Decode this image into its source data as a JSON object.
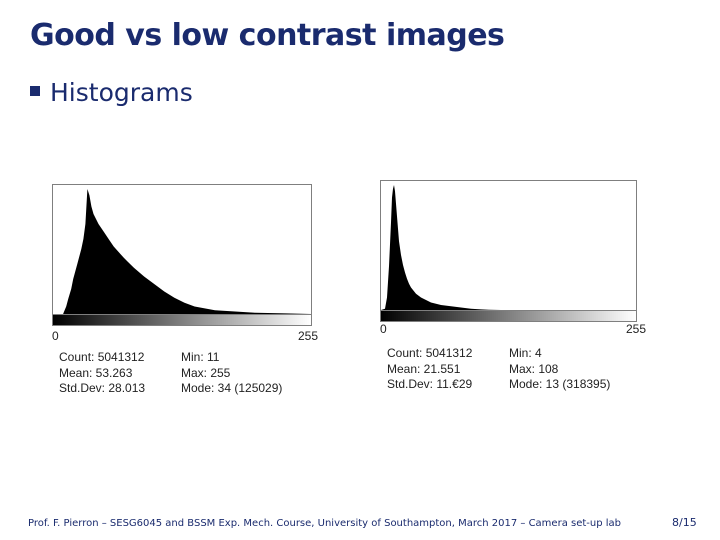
{
  "slide": {
    "title": "Good vs low contrast images",
    "bullet": "Histograms",
    "footer": "Prof. F. Pierron – SESG6045 and BSSM Exp. Mech. Course, University of Southampton, March 2017 – Camera set-up lab",
    "page": "8/15"
  },
  "colors": {
    "title": "#1a2b6e",
    "histogram_fill": "#000000"
  },
  "chart_data": [
    {
      "type": "area",
      "x": [
        0,
        5,
        10,
        11,
        13,
        15,
        18,
        20,
        24,
        28,
        30,
        32,
        34,
        36,
        38,
        40,
        45,
        50,
        55,
        60,
        70,
        80,
        90,
        100,
        110,
        120,
        130,
        140,
        160,
        180,
        200,
        230,
        255
      ],
      "values": [
        0,
        0,
        0,
        2,
        6,
        12,
        20,
        28,
        40,
        52,
        60,
        72,
        100,
        95,
        86,
        80,
        72,
        66,
        60,
        54,
        45,
        37,
        30,
        24,
        18,
        13,
        9,
        6,
        3,
        2,
        1,
        0.5,
        0
      ],
      "xlim": [
        0,
        255
      ],
      "xtick_labels": [
        "0",
        "255"
      ],
      "stats_left": [
        "Count: 5041312",
        "Mean: 53.263",
        "Std.Dev: 28.013"
      ],
      "stats_right": [
        "Min: 11",
        "Max: 255",
        "Mode: 34 (125029)"
      ]
    },
    {
      "type": "area",
      "x": [
        0,
        4,
        6,
        8,
        10,
        11,
        12,
        13,
        14,
        16,
        18,
        20,
        22,
        24,
        26,
        28,
        30,
        35,
        40,
        45,
        50,
        60,
        70,
        80,
        90,
        100,
        108,
        120,
        255
      ],
      "values": [
        0,
        1,
        10,
        35,
        70,
        90,
        97,
        100,
        95,
        75,
        55,
        44,
        36,
        30,
        25,
        21,
        18,
        13,
        10,
        8,
        6,
        4,
        3,
        2,
        1,
        0.5,
        0.2,
        0,
        0
      ],
      "xlim": [
        0,
        255
      ],
      "xtick_labels": [
        "0",
        "255"
      ],
      "stats_left": [
        "Count: 5041312",
        "Mean: 21.551",
        "Std.Dev: 11.€29"
      ],
      "stats_right": [
        "Min: 4",
        "Max: 108",
        "Mode: 13 (318395)"
      ]
    }
  ]
}
